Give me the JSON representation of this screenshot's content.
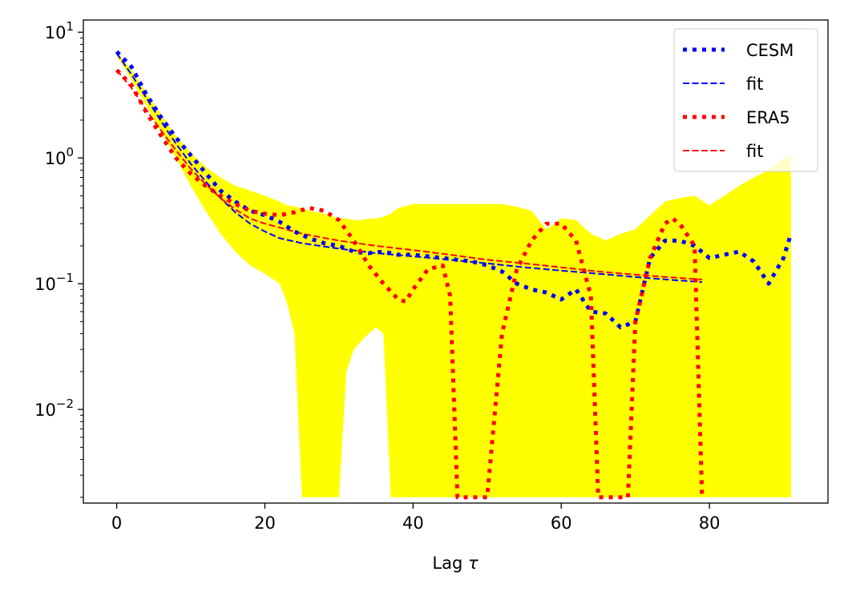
{
  "chart_data": {
    "type": "line",
    "title": "",
    "xlabel": "Lag",
    "xlabel_symbol": "τ",
    "ylabel": "",
    "yscale": "log",
    "xlim": [
      -4.5,
      96
    ],
    "ylim": [
      0.0018,
      12.5
    ],
    "xticks": [
      0,
      20,
      40,
      60,
      80
    ],
    "xtick_labels": [
      "0",
      "20",
      "40",
      "60",
      "80"
    ],
    "yticks": [
      0.01,
      0.1,
      1,
      10
    ],
    "ytick_labels": [
      {
        "base": "10",
        "exp": "−2"
      },
      {
        "base": "10",
        "exp": "−1"
      },
      {
        "base": "10",
        "exp": "0"
      },
      {
        "base": "10",
        "exp": "1"
      }
    ],
    "grid": false,
    "legend_position": "top-right",
    "band": {
      "name": "spread",
      "color": "#ffff00",
      "x": [
        0,
        2,
        4,
        6,
        8,
        10,
        12,
        14,
        16,
        18,
        20,
        22,
        23,
        24,
        25,
        26,
        28,
        30,
        31,
        32,
        33,
        34,
        35,
        36,
        37,
        38,
        40,
        42,
        44,
        46,
        48,
        50,
        52,
        54,
        56,
        58,
        60,
        62,
        64,
        66,
        68,
        70,
        72,
        74,
        76,
        78,
        80,
        82,
        84,
        86,
        88,
        90,
        91
      ],
      "upper": [
        7.0,
        5.0,
        3.3,
        2.2,
        1.5,
        1.1,
        0.85,
        0.7,
        0.6,
        0.55,
        0.5,
        0.45,
        0.42,
        0.41,
        0.4,
        0.38,
        0.36,
        0.33,
        0.33,
        0.32,
        0.32,
        0.33,
        0.33,
        0.34,
        0.36,
        0.4,
        0.43,
        0.43,
        0.43,
        0.43,
        0.43,
        0.43,
        0.43,
        0.41,
        0.38,
        0.27,
        0.33,
        0.32,
        0.25,
        0.22,
        0.25,
        0.27,
        0.35,
        0.45,
        0.48,
        0.5,
        0.42,
        0.5,
        0.6,
        0.7,
        0.8,
        1.0,
        1.05
      ],
      "lower": [
        6.5,
        4.2,
        2.6,
        1.6,
        1.0,
        0.6,
        0.38,
        0.25,
        0.18,
        0.14,
        0.12,
        0.1,
        0.07,
        0.04,
        0.002,
        0.002,
        0.002,
        0.002,
        0.02,
        0.03,
        0.035,
        0.04,
        0.045,
        0.04,
        0.002,
        0.002,
        0.002,
        0.002,
        0.002,
        0.002,
        0.002,
        0.002,
        0.002,
        0.002,
        0.002,
        0.002,
        0.002,
        0.002,
        0.002,
        0.002,
        0.002,
        0.002,
        0.002,
        0.002,
        0.002,
        0.002,
        0.002,
        0.002,
        0.002,
        0.002,
        0.002,
        0.002,
        0.002
      ]
    },
    "series": [
      {
        "name": "CESM",
        "style": "dotted",
        "color": "#0000ff",
        "x": [
          0,
          2,
          4,
          6,
          8,
          10,
          12,
          14,
          16,
          18,
          20,
          22,
          24,
          26,
          28,
          30,
          32,
          34,
          36,
          38,
          40,
          42,
          44,
          46,
          48,
          50,
          52,
          54,
          56,
          58,
          60,
          62,
          64,
          66,
          68,
          70,
          72,
          74,
          76,
          78,
          80,
          82,
          84,
          86,
          88,
          90,
          91
        ],
        "values": [
          7.0,
          5.3,
          3.2,
          2.1,
          1.45,
          1.05,
          0.76,
          0.55,
          0.45,
          0.38,
          0.35,
          0.31,
          0.26,
          0.23,
          0.21,
          0.2,
          0.18,
          0.175,
          0.18,
          0.17,
          0.17,
          0.165,
          0.16,
          0.155,
          0.15,
          0.14,
          0.125,
          0.1,
          0.09,
          0.085,
          0.075,
          0.09,
          0.06,
          0.058,
          0.045,
          0.05,
          0.16,
          0.22,
          0.22,
          0.2,
          0.16,
          0.17,
          0.18,
          0.15,
          0.1,
          0.16,
          0.25
        ]
      },
      {
        "name": "fit",
        "style": "dashed",
        "color": "#0000ff",
        "x": [
          0,
          2,
          4,
          6,
          8,
          10,
          12,
          14,
          16,
          18,
          20,
          22,
          25,
          30,
          35,
          40,
          45,
          50,
          55,
          60,
          65,
          70,
          75,
          79
        ],
        "values": [
          6.8,
          4.6,
          3.0,
          1.95,
          1.3,
          0.9,
          0.65,
          0.48,
          0.37,
          0.3,
          0.26,
          0.23,
          0.21,
          0.19,
          0.175,
          0.165,
          0.155,
          0.145,
          0.135,
          0.127,
          0.12,
          0.113,
          0.107,
          0.103
        ]
      },
      {
        "name": "ERA5",
        "style": "dotted",
        "color": "#ff0000",
        "x": [
          0,
          2,
          4,
          6,
          8,
          10,
          12,
          14,
          16,
          18,
          20,
          22,
          24,
          26,
          28,
          30,
          32,
          34,
          36,
          38,
          39,
          40,
          42,
          44,
          45,
          46,
          47,
          48,
          49,
          50,
          52,
          54,
          56,
          58,
          60,
          62,
          64,
          65,
          66,
          67,
          68,
          69,
          70,
          72,
          74,
          75,
          76,
          78,
          79
        ],
        "values": [
          5.0,
          3.8,
          2.3,
          1.5,
          1.0,
          0.75,
          0.6,
          0.5,
          0.43,
          0.38,
          0.36,
          0.35,
          0.37,
          0.4,
          0.38,
          0.32,
          0.22,
          0.14,
          0.1,
          0.075,
          0.072,
          0.09,
          0.13,
          0.14,
          0.08,
          0.002,
          0.002,
          0.002,
          0.002,
          0.002,
          0.04,
          0.13,
          0.22,
          0.3,
          0.3,
          0.22,
          0.08,
          0.002,
          0.002,
          0.002,
          0.002,
          0.002,
          0.05,
          0.16,
          0.3,
          0.33,
          0.3,
          0.2,
          0.002
        ]
      },
      {
        "name": "fit",
        "style": "dashed",
        "color": "#ff0000",
        "x": [
          0,
          2,
          4,
          6,
          8,
          10,
          12,
          14,
          16,
          18,
          20,
          22,
          25,
          30,
          35,
          40,
          45,
          50,
          55,
          60,
          65,
          70,
          75,
          79
        ],
        "values": [
          5.0,
          3.6,
          2.4,
          1.65,
          1.15,
          0.82,
          0.62,
          0.48,
          0.39,
          0.33,
          0.3,
          0.28,
          0.25,
          0.22,
          0.2,
          0.185,
          0.17,
          0.155,
          0.145,
          0.135,
          0.125,
          0.118,
          0.112,
          0.108
        ]
      }
    ]
  }
}
